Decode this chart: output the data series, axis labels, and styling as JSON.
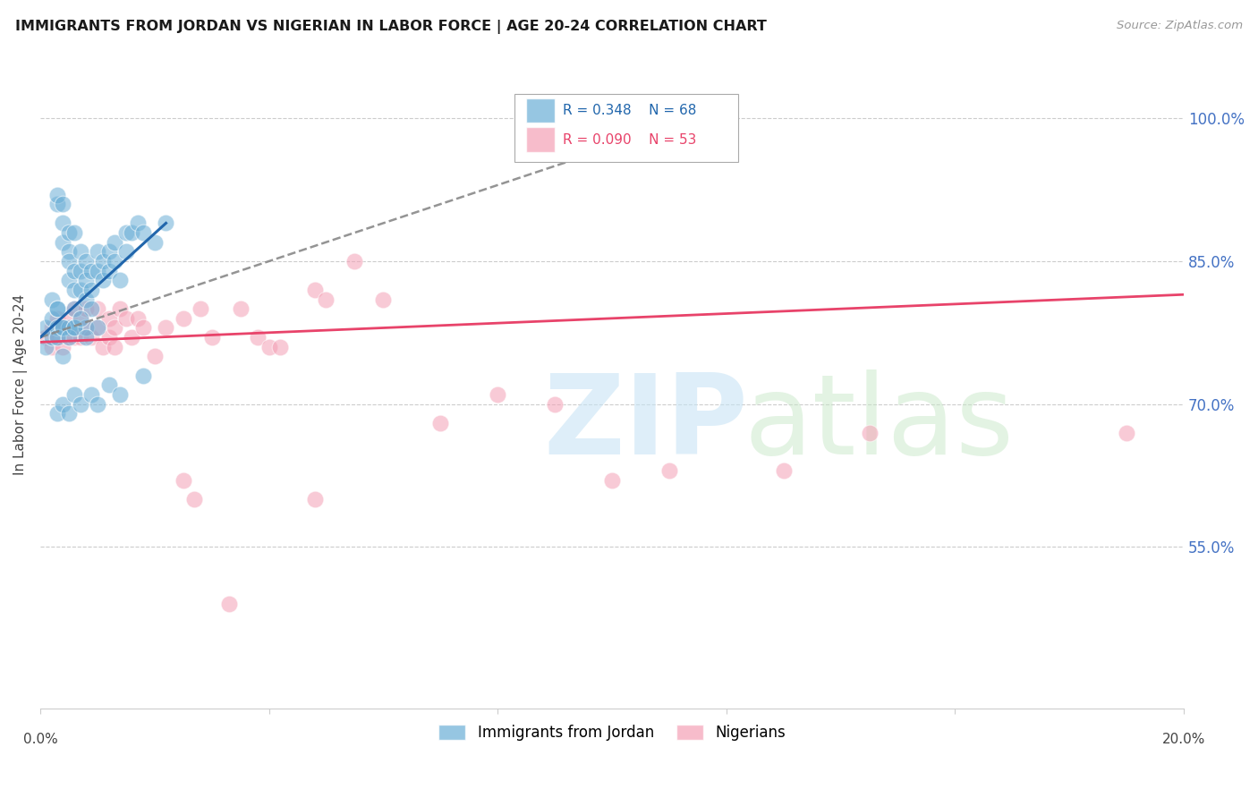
{
  "title": "IMMIGRANTS FROM JORDAN VS NIGERIAN IN LABOR FORCE | AGE 20-24 CORRELATION CHART",
  "source": "Source: ZipAtlas.com",
  "ylabel": "In Labor Force | Age 20-24",
  "ytick_labels": [
    "100.0%",
    "85.0%",
    "70.0%",
    "55.0%"
  ],
  "ytick_values": [
    1.0,
    0.85,
    0.7,
    0.55
  ],
  "xlim": [
    0.0,
    0.2
  ],
  "ylim": [
    0.38,
    1.06
  ],
  "jordan_R": "0.348",
  "jordan_N": "68",
  "nigerian_R": "0.090",
  "nigerian_N": "53",
  "jordan_color": "#6aaed6",
  "nigerian_color": "#f4a0b5",
  "jordan_line_color": "#2166ac",
  "nigerian_line_color": "#e8436a",
  "background_color": "#ffffff",
  "jordan_x": [
    0.001,
    0.001,
    0.002,
    0.002,
    0.002,
    0.003,
    0.003,
    0.003,
    0.003,
    0.004,
    0.004,
    0.004,
    0.004,
    0.005,
    0.005,
    0.005,
    0.005,
    0.005,
    0.006,
    0.006,
    0.006,
    0.006,
    0.006,
    0.007,
    0.007,
    0.007,
    0.008,
    0.008,
    0.008,
    0.008,
    0.009,
    0.009,
    0.009,
    0.01,
    0.01,
    0.01,
    0.011,
    0.011,
    0.012,
    0.012,
    0.013,
    0.013,
    0.014,
    0.015,
    0.015,
    0.016,
    0.017,
    0.018,
    0.02,
    0.022,
    0.003,
    0.004,
    0.005,
    0.006,
    0.007,
    0.009,
    0.01,
    0.012,
    0.014,
    0.018,
    0.003,
    0.004,
    0.003,
    0.004,
    0.005,
    0.006,
    0.007,
    0.008
  ],
  "jordan_y": [
    0.78,
    0.76,
    0.81,
    0.77,
    0.79,
    0.91,
    0.92,
    0.78,
    0.8,
    0.91,
    0.89,
    0.87,
    0.78,
    0.88,
    0.86,
    0.85,
    0.83,
    0.78,
    0.84,
    0.82,
    0.88,
    0.8,
    0.78,
    0.84,
    0.86,
    0.82,
    0.85,
    0.83,
    0.81,
    0.78,
    0.84,
    0.82,
    0.8,
    0.86,
    0.84,
    0.78,
    0.85,
    0.83,
    0.86,
    0.84,
    0.87,
    0.85,
    0.83,
    0.88,
    0.86,
    0.88,
    0.89,
    0.88,
    0.87,
    0.89,
    0.69,
    0.7,
    0.69,
    0.71,
    0.7,
    0.71,
    0.7,
    0.72,
    0.71,
    0.73,
    0.77,
    0.75,
    0.8,
    0.78,
    0.77,
    0.78,
    0.79,
    0.77
  ],
  "nigerian_x": [
    0.001,
    0.002,
    0.002,
    0.003,
    0.003,
    0.004,
    0.004,
    0.005,
    0.005,
    0.006,
    0.006,
    0.007,
    0.007,
    0.008,
    0.008,
    0.009,
    0.01,
    0.01,
    0.011,
    0.012,
    0.012,
    0.013,
    0.013,
    0.014,
    0.015,
    0.016,
    0.017,
    0.018,
    0.02,
    0.022,
    0.025,
    0.028,
    0.03,
    0.035,
    0.038,
    0.04,
    0.042,
    0.048,
    0.05,
    0.055,
    0.06,
    0.07,
    0.08,
    0.09,
    0.1,
    0.11,
    0.13,
    0.145,
    0.19,
    0.025,
    0.027,
    0.033,
    0.048
  ],
  "nigerian_y": [
    0.77,
    0.78,
    0.76,
    0.77,
    0.79,
    0.78,
    0.76,
    0.77,
    0.79,
    0.8,
    0.77,
    0.79,
    0.77,
    0.8,
    0.78,
    0.77,
    0.8,
    0.78,
    0.76,
    0.79,
    0.77,
    0.78,
    0.76,
    0.8,
    0.79,
    0.77,
    0.79,
    0.78,
    0.75,
    0.78,
    0.79,
    0.8,
    0.77,
    0.8,
    0.77,
    0.76,
    0.76,
    0.82,
    0.81,
    0.85,
    0.81,
    0.68,
    0.71,
    0.7,
    0.62,
    0.63,
    0.63,
    0.67,
    0.67,
    0.62,
    0.6,
    0.49,
    0.6
  ],
  "jordan_line_x": [
    0.0,
    0.095
  ],
  "jordan_line_y": [
    0.77,
    0.96
  ],
  "nigerian_line_x": [
    0.0,
    0.2
  ],
  "nigerian_line_y": [
    0.765,
    0.815
  ]
}
